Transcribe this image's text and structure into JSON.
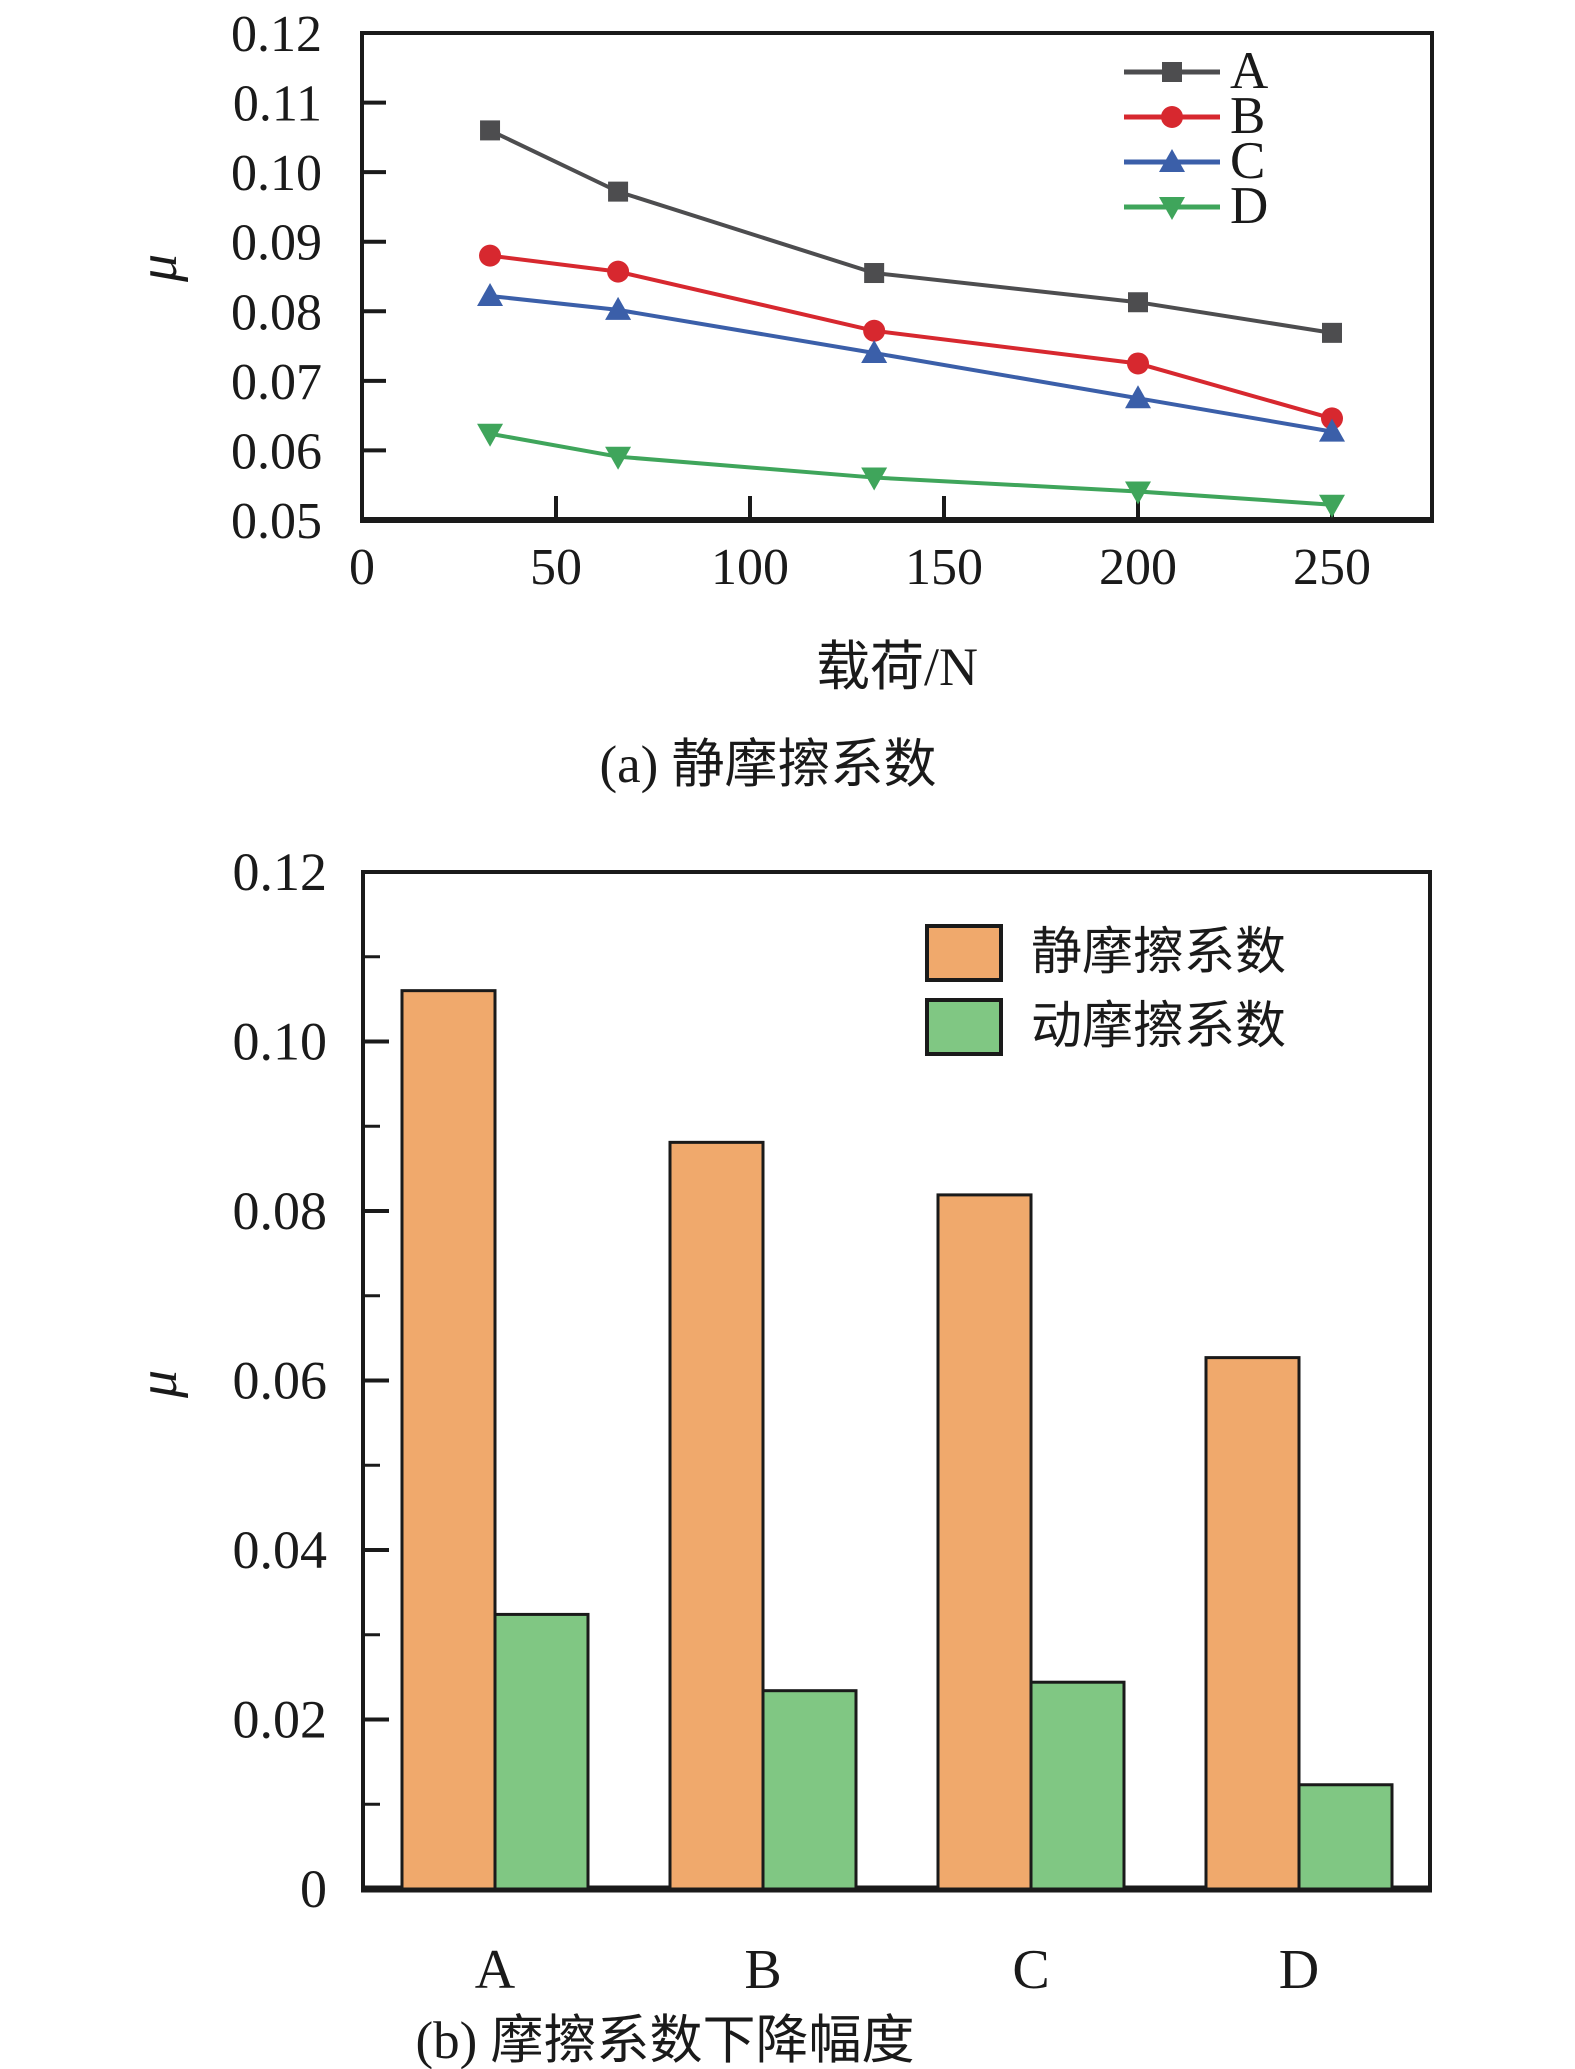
{
  "figure": {
    "caption_a": "(a) 静摩擦系数",
    "caption_b": "(b) 摩擦系数下降幅度"
  },
  "colors": {
    "ink": "#1a1a1a",
    "series_a_gray": "#4d4d4f",
    "series_b_red": "#d7282f",
    "series_c_blue": "#3b5fa9",
    "series_d_green": "#3fa55b",
    "static_bar_orange": "#f0a96c",
    "dynamic_bar_green": "#80c783"
  },
  "chart_data": [
    {
      "type": "line",
      "title": "",
      "xlabel": "载荷/N",
      "ylabel": "μ",
      "xlim": [
        0,
        276
      ],
      "ylim": [
        0.05,
        0.12
      ],
      "x_ticks": [
        0,
        50,
        100,
        150,
        200,
        250
      ],
      "y_ticks": [
        0.05,
        0.06,
        0.07,
        0.08,
        0.09,
        0.1,
        0.11,
        0.12
      ],
      "grid": false,
      "legend_position": "top-right-inside",
      "x": [
        33,
        66,
        132,
        200,
        250
      ],
      "series": [
        {
          "name": "A",
          "marker": "square",
          "color": "#4d4d4f",
          "values": [
            0.106,
            0.0972,
            0.0855,
            0.0813,
            0.0769
          ]
        },
        {
          "name": "B",
          "marker": "circle",
          "color": "#d7282f",
          "values": [
            0.088,
            0.0857,
            0.0772,
            0.0725,
            0.0646
          ]
        },
        {
          "name": "C",
          "marker": "triangle-up",
          "color": "#3b5fa9",
          "values": [
            0.0822,
            0.0802,
            0.074,
            0.0675,
            0.0627
          ]
        },
        {
          "name": "D",
          "marker": "triangle-down",
          "color": "#3fa55b",
          "values": [
            0.0624,
            0.0591,
            0.0561,
            0.0541,
            0.0522
          ]
        }
      ]
    },
    {
      "type": "bar",
      "title": "",
      "xlabel": "",
      "ylabel": "μ",
      "ylim": [
        0,
        0.12
      ],
      "y_ticks": [
        0,
        0.02,
        0.04,
        0.06,
        0.08,
        0.1,
        0.12
      ],
      "y_minor_ticks": [
        0.01,
        0.03,
        0.05,
        0.07,
        0.09,
        0.11
      ],
      "grid": false,
      "legend_position": "top-right-inside",
      "categories": [
        "A",
        "B",
        "C",
        "D"
      ],
      "series": [
        {
          "name": "静摩擦系数",
          "color": "#f0a96c",
          "values": [
            0.106,
            0.0881,
            0.0819,
            0.0627
          ]
        },
        {
          "name": "动摩擦系数",
          "color": "#80c783",
          "values": [
            0.0324,
            0.0234,
            0.0244,
            0.0123
          ]
        }
      ]
    }
  ]
}
